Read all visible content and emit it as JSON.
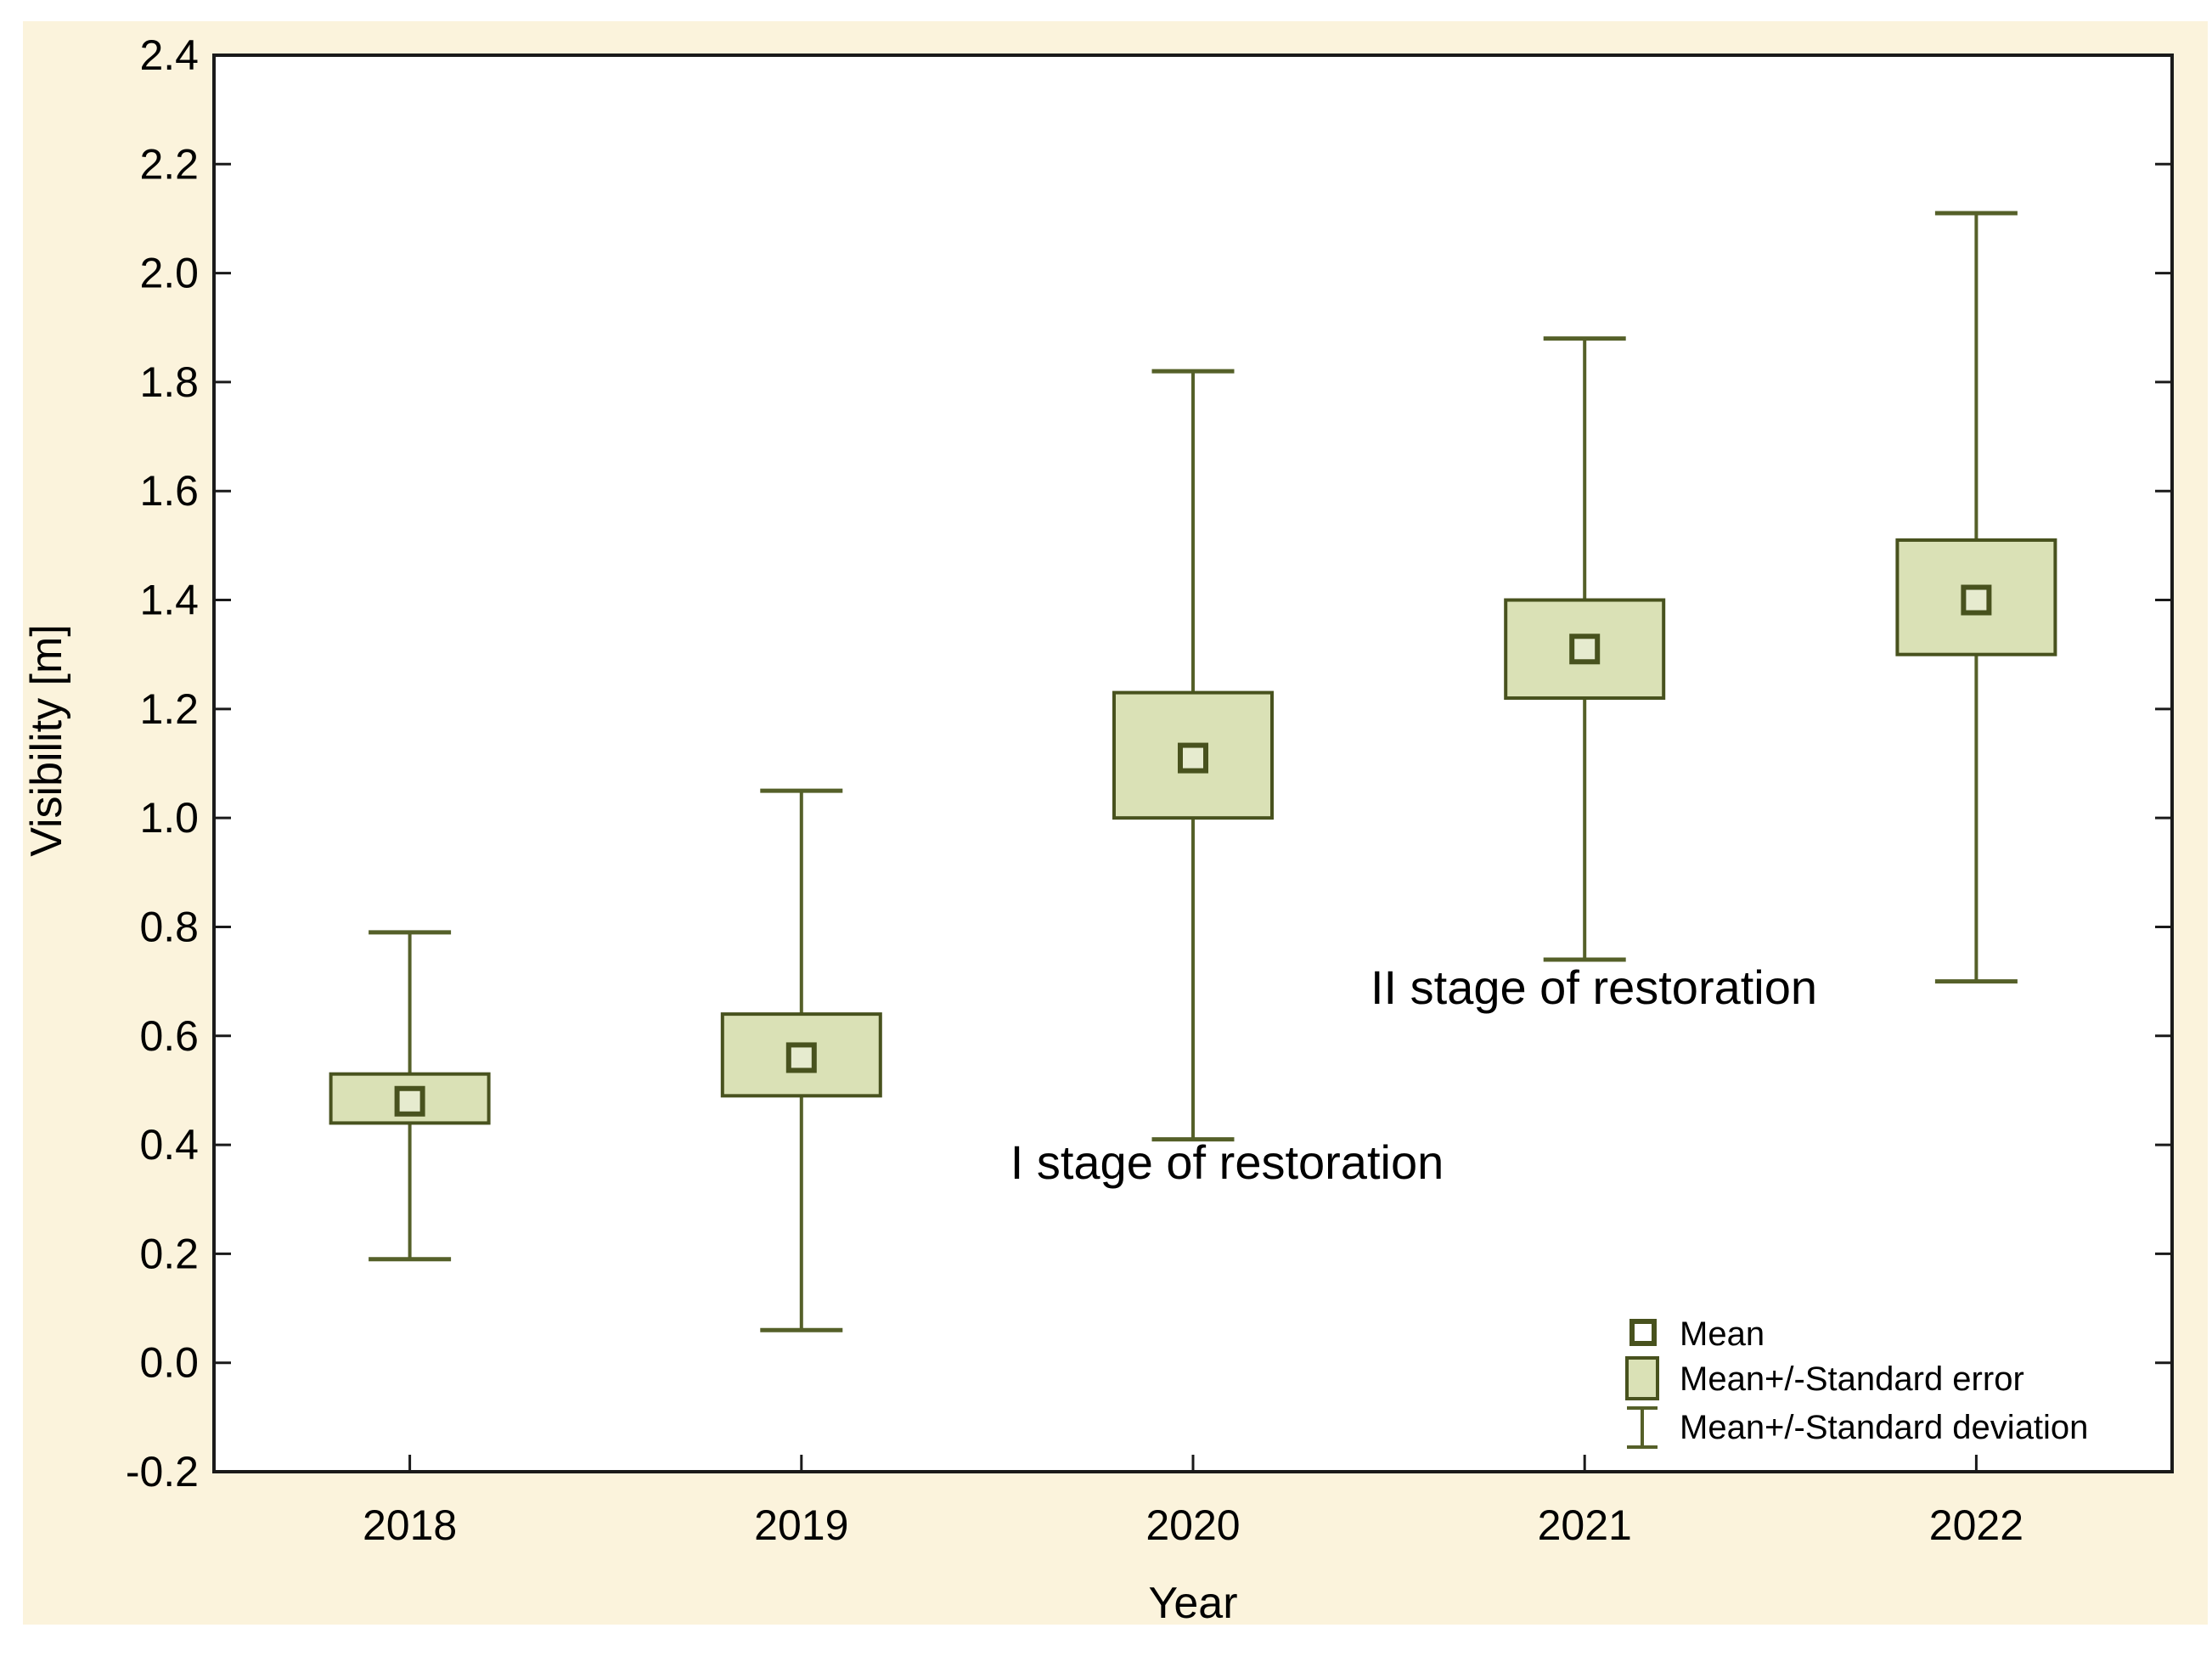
{
  "figure": {
    "background": "#ffffff",
    "panel_background": "#FBF3DC",
    "plot_background": "#ffffff",
    "frame_color": "#1a1a1a"
  },
  "colors": {
    "box_fill": "#DAE1B6",
    "box_border": "#48521E",
    "whisker": "#556029",
    "marker_fill": "#E6EBCF",
    "marker_border": "#48521E",
    "legend_square_fill": "#ffffff",
    "text": "#000000"
  },
  "axes": {
    "y": {
      "title": "Visibility [m]",
      "min": -0.2,
      "max": 2.4,
      "tick_step": 0.2,
      "ticks": [
        2.4,
        2.2,
        2.0,
        1.8,
        1.6,
        1.4,
        1.2,
        1.0,
        0.8,
        0.6,
        0.4,
        0.2,
        0.0,
        -0.2
      ],
      "tick_labels": [
        "2.4",
        "2.2",
        "2.0",
        "1.8",
        "1.6",
        "1.4",
        "1.2",
        "1.0",
        "0.8",
        "0.6",
        "0.4",
        "0.2",
        "0.0",
        "-0.2"
      ]
    },
    "x": {
      "title": "Year",
      "categories": [
        "2018",
        "2019",
        "2020",
        "2021",
        "2022"
      ]
    }
  },
  "annotations": [
    {
      "text": "I stage of restoration",
      "x": "1445",
      "y": "1388"
    },
    {
      "text": "II stage of restoration",
      "x": "1877",
      "y": "1182"
    }
  ],
  "legend": {
    "items": [
      {
        "marker": "mean-square-icon",
        "label": "Mean"
      },
      {
        "marker": "std-error-box-icon",
        "label": "Mean+/-Standard error"
      },
      {
        "marker": "std-deviation-whisker-icon",
        "label": "Mean+/-Standard deviation"
      }
    ]
  },
  "chart_data": {
    "type": "box",
    "subtype": "mean / mean±standard-error box / mean±standard-deviation whiskers",
    "title": "",
    "xlabel": "Year",
    "ylabel": "Visibility [m]",
    "ylim": [
      -0.2,
      2.4
    ],
    "grid": false,
    "legend_position": "bottom-right inside plot",
    "categories": [
      "2018",
      "2019",
      "2020",
      "2021",
      "2022"
    ],
    "series": [
      {
        "name": "Mean",
        "values": [
          0.48,
          0.56,
          1.11,
          1.31,
          1.4
        ]
      },
      {
        "name": "Mean-Standard error",
        "values": [
          0.44,
          0.49,
          1.0,
          1.22,
          1.3
        ]
      },
      {
        "name": "Mean+Standard error",
        "values": [
          0.53,
          0.64,
          1.23,
          1.4,
          1.51
        ]
      },
      {
        "name": "Mean-Standard deviation",
        "values": [
          0.19,
          0.06,
          0.41,
          0.74,
          0.7
        ]
      },
      {
        "name": "Mean+Standard deviation",
        "values": [
          0.79,
          1.05,
          1.82,
          1.88,
          2.11
        ]
      }
    ]
  }
}
